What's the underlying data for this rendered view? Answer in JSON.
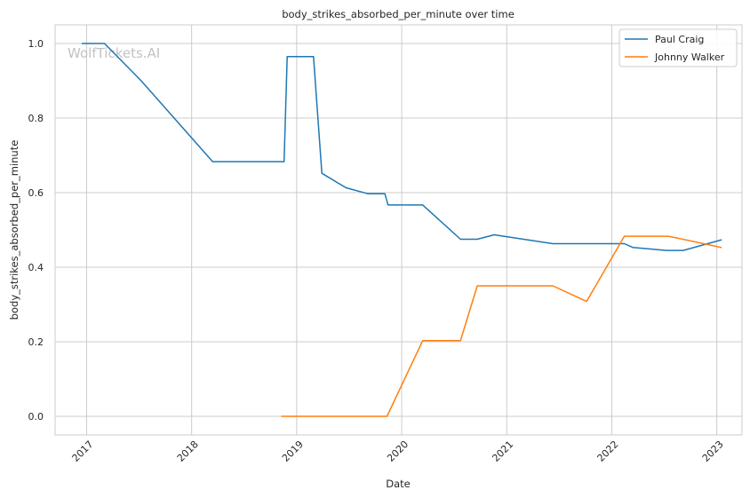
{
  "chart_data": {
    "type": "line",
    "title": "body_strikes_absorbed_per_minute over time",
    "xlabel": "Date",
    "ylabel": "body_strikes_absorbed_per_minute",
    "watermark": "WolfTickets.AI",
    "xlim": [
      2016.7,
      2023.24
    ],
    "ylim": [
      -0.05,
      1.05
    ],
    "x_ticks": [
      2017,
      2018,
      2019,
      2020,
      2021,
      2022,
      2023
    ],
    "x_tick_labels": [
      "2017",
      "2018",
      "2019",
      "2020",
      "2021",
      "2022",
      "2023"
    ],
    "y_ticks": [
      0.0,
      0.2,
      0.4,
      0.6,
      0.8,
      1.0
    ],
    "y_tick_labels": [
      "0.0",
      "0.2",
      "0.4",
      "0.6",
      "0.8",
      "1.0"
    ],
    "grid": true,
    "legend_position": "top-right",
    "series": [
      {
        "name": "Paul Craig",
        "color": "#1f77b4",
        "points": [
          [
            2016.96,
            1.0
          ],
          [
            2017.17,
            1.0
          ],
          [
            2017.52,
            0.9
          ],
          [
            2018.2,
            0.683
          ],
          [
            2018.88,
            0.683
          ],
          [
            2018.91,
            0.965
          ],
          [
            2019.16,
            0.965
          ],
          [
            2019.24,
            0.652
          ],
          [
            2019.47,
            0.613
          ],
          [
            2019.68,
            0.597
          ],
          [
            2019.84,
            0.597
          ],
          [
            2019.87,
            0.567
          ],
          [
            2020.2,
            0.567
          ],
          [
            2020.56,
            0.475
          ],
          [
            2020.72,
            0.475
          ],
          [
            2020.88,
            0.487
          ],
          [
            2021.44,
            0.463
          ],
          [
            2022.12,
            0.463
          ],
          [
            2022.2,
            0.453
          ],
          [
            2022.52,
            0.445
          ],
          [
            2022.68,
            0.445
          ],
          [
            2023.04,
            0.473
          ]
        ]
      },
      {
        "name": "Johnny Walker",
        "color": "#ff7f0e",
        "points": [
          [
            2018.86,
            0.0
          ],
          [
            2019.86,
            0.0
          ],
          [
            2020.2,
            0.203
          ],
          [
            2020.56,
            0.203
          ],
          [
            2020.72,
            0.35
          ],
          [
            2021.44,
            0.35
          ],
          [
            2021.76,
            0.308
          ],
          [
            2022.12,
            0.483
          ],
          [
            2022.54,
            0.483
          ],
          [
            2023.04,
            0.453
          ]
        ]
      }
    ]
  }
}
